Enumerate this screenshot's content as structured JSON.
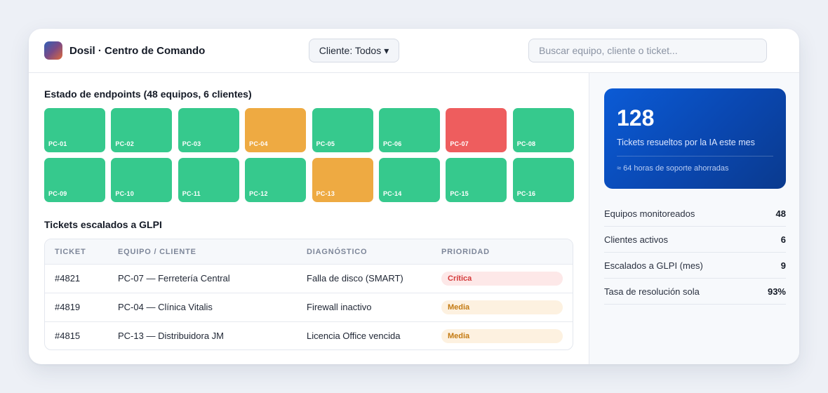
{
  "header": {
    "brand": "Dosil · Centro de Comando",
    "client_select": "Cliente: Todos",
    "client_caret": "▾",
    "search_placeholder": "Buscar equipo, cliente o ticket..."
  },
  "endpoints": {
    "title": "Estado de endpoints (48 equipos, 6 clientes)",
    "status_colors": {
      "ok": "#36c98d",
      "warn": "#eeaa42",
      "crit": "#ee5d5e"
    },
    "tiles": [
      {
        "label": "PC-01",
        "status": "ok"
      },
      {
        "label": "PC-02",
        "status": "ok"
      },
      {
        "label": "PC-03",
        "status": "ok"
      },
      {
        "label": "PC-04",
        "status": "warn"
      },
      {
        "label": "PC-05",
        "status": "ok"
      },
      {
        "label": "PC-06",
        "status": "ok"
      },
      {
        "label": "PC-07",
        "status": "crit"
      },
      {
        "label": "PC-08",
        "status": "ok"
      },
      {
        "label": "PC-09",
        "status": "ok"
      },
      {
        "label": "PC-10",
        "status": "ok"
      },
      {
        "label": "PC-11",
        "status": "ok"
      },
      {
        "label": "PC-12",
        "status": "ok"
      },
      {
        "label": "PC-13",
        "status": "warn"
      },
      {
        "label": "PC-14",
        "status": "ok"
      },
      {
        "label": "PC-15",
        "status": "ok"
      },
      {
        "label": "PC-16",
        "status": "ok"
      }
    ]
  },
  "tickets": {
    "title": "Tickets escalados a GLPI",
    "columns": [
      "TICKET",
      "EQUIPO / CLIENTE",
      "DIAGNÓSTICO",
      "PRIORIDAD"
    ],
    "rows": [
      {
        "ticket": "#4821",
        "equipo": "PC-07 — Ferretería Central",
        "diagnostico": "Falla de disco (SMART)",
        "prioridad": "Crítica",
        "level": "critica"
      },
      {
        "ticket": "#4819",
        "equipo": "PC-04 — Clínica Vitalis",
        "diagnostico": "Firewall inactivo",
        "prioridad": "Media",
        "level": "media"
      },
      {
        "ticket": "#4815",
        "equipo": "PC-13 — Distribuidora JM",
        "diagnostico": "Licencia Office vencida",
        "prioridad": "Media",
        "level": "media"
      }
    ]
  },
  "kpi": {
    "value": "128",
    "label": "Tickets resueltos por la IA este mes",
    "sub": "≈ 64 horas de soporte ahorradas"
  },
  "stats": [
    {
      "label": "Equipos monitoreados",
      "value": "48"
    },
    {
      "label": "Clientes activos",
      "value": "6"
    },
    {
      "label": "Escalados a GLPI (mes)",
      "value": "9"
    },
    {
      "label": "Tasa de resolución sola",
      "value": "93%"
    }
  ]
}
